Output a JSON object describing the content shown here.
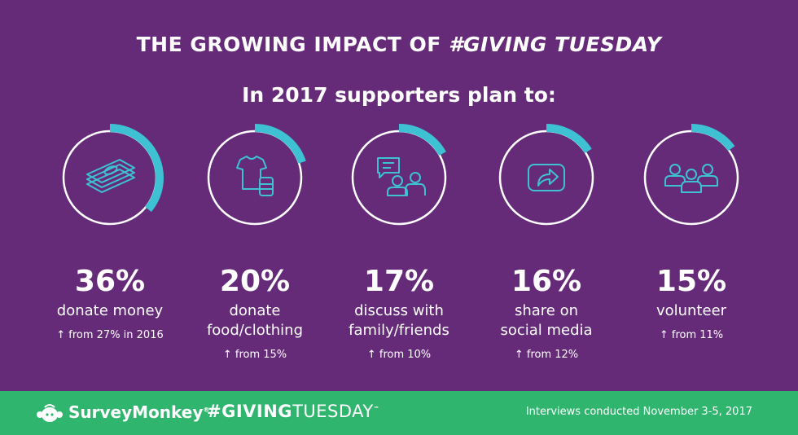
{
  "header": {
    "title_prefix": "THE GROWING IMPACT OF ",
    "title_highlight": "#GIVING TUESDAY",
    "subtitle": "In 2017 supporters plan to:"
  },
  "colors": {
    "background": "#652b78",
    "ring": "#ffffff",
    "arc": "#3ec1d3",
    "footer": "#2fb56e"
  },
  "chart_data": {
    "type": "donut-stats",
    "series": [
      {
        "percent": 36,
        "display": "36%",
        "label_lines": [
          "donate money"
        ],
        "change": "from 27% in 2016",
        "icon": "money-stack-icon"
      },
      {
        "percent": 20,
        "display": "20%",
        "label_lines": [
          "donate",
          "food/clothing"
        ],
        "change": "from 15%",
        "icon": "shirt-and-can-icon"
      },
      {
        "percent": 17,
        "display": "17%",
        "label_lines": [
          "discuss with",
          "family/friends"
        ],
        "change": "from 10%",
        "icon": "conversation-icon"
      },
      {
        "percent": 16,
        "display": "16%",
        "label_lines": [
          "share on",
          "social media"
        ],
        "change": "from 12%",
        "icon": "share-arrow-icon"
      },
      {
        "percent": 15,
        "display": "15%",
        "label_lines": [
          "volunteer"
        ],
        "change": "from 11%",
        "icon": "group-icon"
      }
    ]
  },
  "footer": {
    "brand": "SurveyMonkey",
    "brand_mark": "®",
    "campaign_prefix": "#GI",
    "campaign_heart": "V",
    "campaign_mid": "ING",
    "campaign_suffix": "TUESDAY",
    "campaign_mark": "™",
    "note": "Interviews conducted November 3-5, 2017"
  }
}
